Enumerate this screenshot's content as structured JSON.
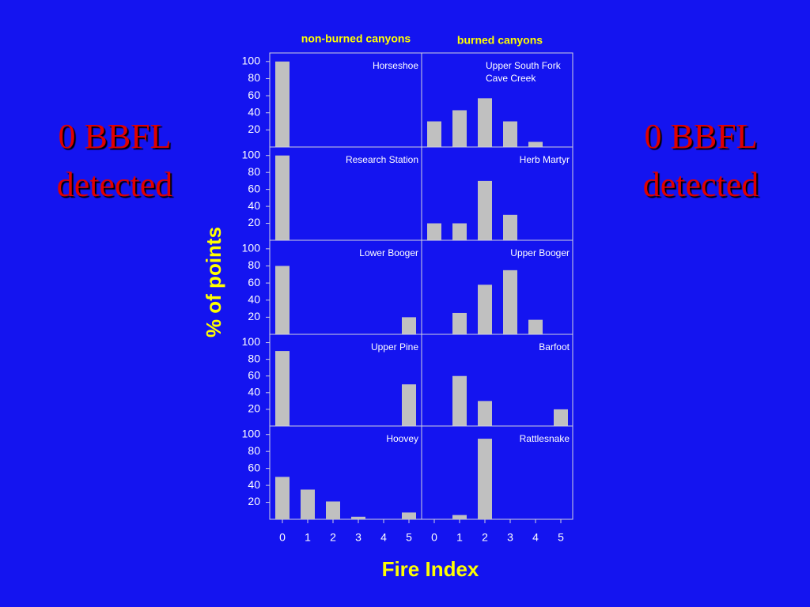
{
  "slide": {
    "left_note": [
      "0 BBFL",
      "detected"
    ],
    "right_note": [
      "0 BBFL",
      "detected"
    ],
    "column_titles": [
      "non-burned canyons",
      "burned canyons"
    ],
    "y_label": "% of points",
    "x_label": "Fire Index"
  },
  "chart_data": [
    {
      "type": "bar",
      "title": [
        "Horseshoe"
      ],
      "values": [
        100,
        0,
        0,
        0,
        0,
        0
      ],
      "color": "#c0c0c0",
      "ylim": [
        0,
        110
      ],
      "yticks": [
        20,
        40,
        60,
        80,
        100
      ]
    },
    {
      "type": "bar",
      "title": [
        "Upper South Fork",
        "Cave Creek"
      ],
      "values": [
        30,
        43,
        57,
        30,
        6,
        0
      ],
      "color": "#c0c0c0",
      "ylim": [
        0,
        110
      ]
    },
    {
      "type": "bar",
      "title": [
        "Research Station"
      ],
      "values": [
        100,
        0,
        0,
        0,
        0,
        0
      ],
      "color": "#c0c0c0",
      "ylim": [
        0,
        110
      ],
      "yticks": [
        20,
        40,
        60,
        80,
        100
      ]
    },
    {
      "type": "bar",
      "title": [
        "Herb Martyr"
      ],
      "values": [
        20,
        20,
        70,
        30,
        0,
        0
      ],
      "color": "#c0c0c0",
      "ylim": [
        0,
        110
      ]
    },
    {
      "type": "bar",
      "title": [
        "Lower Booger"
      ],
      "values": [
        80,
        0,
        0,
        0,
        0,
        20
      ],
      "color": "#c0c0c0",
      "ylim": [
        0,
        110
      ],
      "yticks": [
        20,
        40,
        60,
        80,
        100
      ]
    },
    {
      "type": "bar",
      "title": [
        "Upper Booger"
      ],
      "values": [
        0,
        25,
        58,
        75,
        17,
        0
      ],
      "color": "#c0c0c0",
      "ylim": [
        0,
        110
      ]
    },
    {
      "type": "bar",
      "title": [
        "Upper Pine"
      ],
      "values": [
        90,
        0,
        0,
        0,
        0,
        50
      ],
      "color": "#c0c0c0",
      "ylim": [
        0,
        110
      ],
      "yticks": [
        20,
        40,
        60,
        80,
        100
      ]
    },
    {
      "type": "bar",
      "title": [
        "Barfoot"
      ],
      "values": [
        0,
        60,
        30,
        0,
        0,
        20
      ],
      "color": "#c0c0c0",
      "ylim": [
        0,
        110
      ]
    },
    {
      "type": "bar",
      "title": [
        "Hoovey"
      ],
      "values": [
        50,
        35,
        21,
        3,
        0,
        8
      ],
      "color": "#c0c0c0",
      "ylim": [
        0,
        110
      ],
      "yticks": [
        20,
        40,
        60,
        80,
        100
      ],
      "categories": [
        0,
        1,
        2,
        3,
        4,
        5
      ]
    },
    {
      "type": "bar",
      "title": [
        "Rattlesnake"
      ],
      "values": [
        0,
        5,
        95,
        0,
        0,
        0
      ],
      "color": "#c0c0c0",
      "ylim": [
        0,
        110
      ],
      "categories": [
        0,
        1,
        2,
        3,
        4,
        5
      ]
    }
  ]
}
